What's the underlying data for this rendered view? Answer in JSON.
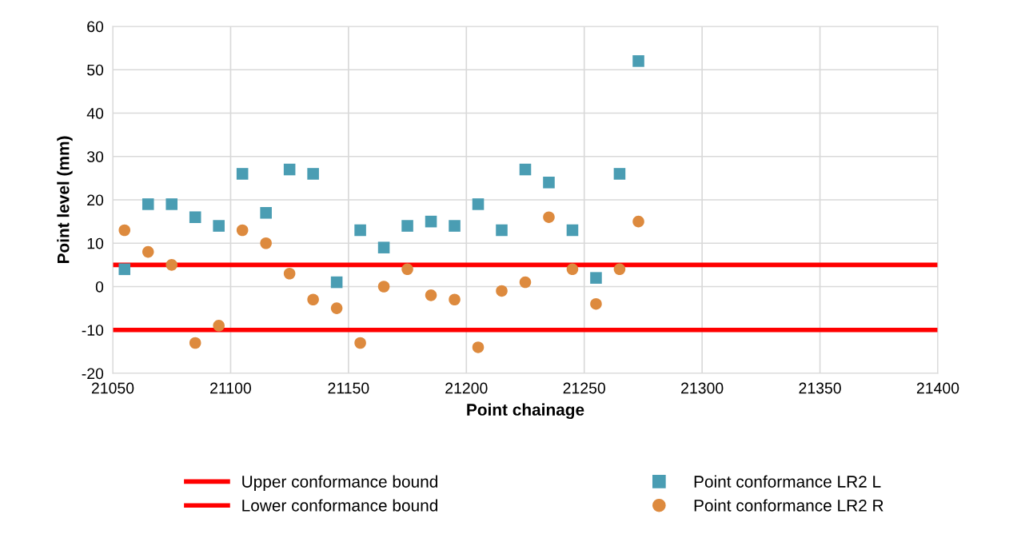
{
  "chart_data": {
    "type": "scatter",
    "xlabel": "Point chainage",
    "ylabel": "Point level (mm)",
    "xlim": [
      21050,
      21400
    ],
    "xticks": [
      21050,
      21100,
      21150,
      21200,
      21250,
      21300,
      21350,
      21400
    ],
    "ylim": [
      -20,
      60
    ],
    "yticks": [
      -20,
      -10,
      0,
      10,
      20,
      30,
      40,
      50,
      60
    ],
    "x": [
      21055,
      21065,
      21075,
      21085,
      21095,
      21105,
      21115,
      21125,
      21135,
      21145,
      21155,
      21165,
      21175,
      21185,
      21195,
      21205,
      21215,
      21225,
      21235,
      21245,
      21255,
      21265,
      21273
    ],
    "series": [
      {
        "name": "Point conformance LR2 L",
        "color": "#4a9db3",
        "marker": "square",
        "values": [
          4,
          19,
          19,
          16,
          14,
          26,
          17,
          27,
          26,
          1,
          13,
          9,
          14,
          15,
          14,
          19,
          13,
          27,
          24,
          13,
          2,
          26,
          52
        ]
      },
      {
        "name": "Point conformance LR2 R",
        "color": "#dd8a3e",
        "marker": "circle",
        "values": [
          13,
          8,
          5,
          -13,
          -9,
          13,
          10,
          3,
          -3,
          -5,
          -13,
          0,
          4,
          -2,
          -3,
          -14,
          -1,
          1,
          16,
          4,
          -4,
          4,
          15
        ]
      }
    ],
    "ref_lines": [
      {
        "axis": "y",
        "value": 5,
        "label": "Upper conformance bound",
        "color": "#ff0000"
      },
      {
        "axis": "y",
        "value": -10,
        "label": "Lower conformance bound",
        "color": "#ff0000"
      }
    ],
    "grid": true,
    "legend": "bottom"
  }
}
